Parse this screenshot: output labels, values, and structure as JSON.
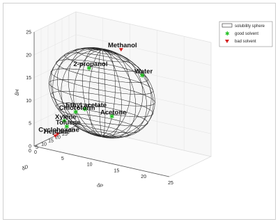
{
  "chart_data": {
    "type": "scatter",
    "subtype": "3d-scatter-with-sphere",
    "axes": {
      "dD": {
        "label": "δD",
        "ticks": [
          0,
          5,
          10,
          15,
          20,
          25,
          30
        ]
      },
      "dP": {
        "label": "δP",
        "ticks": [
          0,
          5,
          10,
          15,
          20,
          25
        ]
      },
      "dH": {
        "label": "δH",
        "ticks": [
          0,
          5,
          10,
          15,
          20,
          25
        ]
      }
    },
    "legend": {
      "placement": "top-right",
      "entries": [
        {
          "label": "solubility sphere",
          "marker": "rectangle-outline"
        },
        {
          "label": "good solvent",
          "marker": "green-star"
        },
        {
          "label": "bad solvent",
          "marker": "red-triangle"
        }
      ]
    },
    "colors": {
      "good": "#22c022",
      "bad": "#d42020",
      "sphere": "#222222"
    },
    "sphere": {
      "center": {
        "dD": 17.3,
        "dP": 8.1,
        "dH": 11.3
      },
      "radius": 9.5
    },
    "series": [
      {
        "name": "good solvent",
        "points": [
          {
            "label": "Water",
            "dD": 15.5,
            "dP": 16.0,
            "dH": 17.5
          },
          {
            "label": "2-propanol",
            "dD": 15.8,
            "dP": 6.1,
            "dH": 16.4
          },
          {
            "label": "Acetone",
            "dD": 15.5,
            "dP": 10.4,
            "dH": 7.0
          },
          {
            "label": "Ethyl acetate",
            "dD": 15.8,
            "dP": 5.3,
            "dH": 7.2
          },
          {
            "label": "Chloroform",
            "dD": 17.8,
            "dP": 3.1,
            "dH": 5.7
          },
          {
            "label": "Xylene",
            "dD": 17.8,
            "dP": 1.0,
            "dH": 3.1
          },
          {
            "label": "Toluene",
            "dD": 18.0,
            "dP": 1.4,
            "dH": 2.0
          }
        ]
      },
      {
        "name": "bad solvent",
        "points": [
          {
            "label": "Methanol",
            "dD": 14.7,
            "dP": 12.3,
            "dH": 22.3
          },
          {
            "label": "Cyclohexane",
            "dD": 16.8,
            "dP": 0.0,
            "dH": 0.2
          },
          {
            "label": "Heptane",
            "dD": 15.3,
            "dP": 0.0,
            "dH": 0.0
          }
        ]
      }
    ]
  }
}
